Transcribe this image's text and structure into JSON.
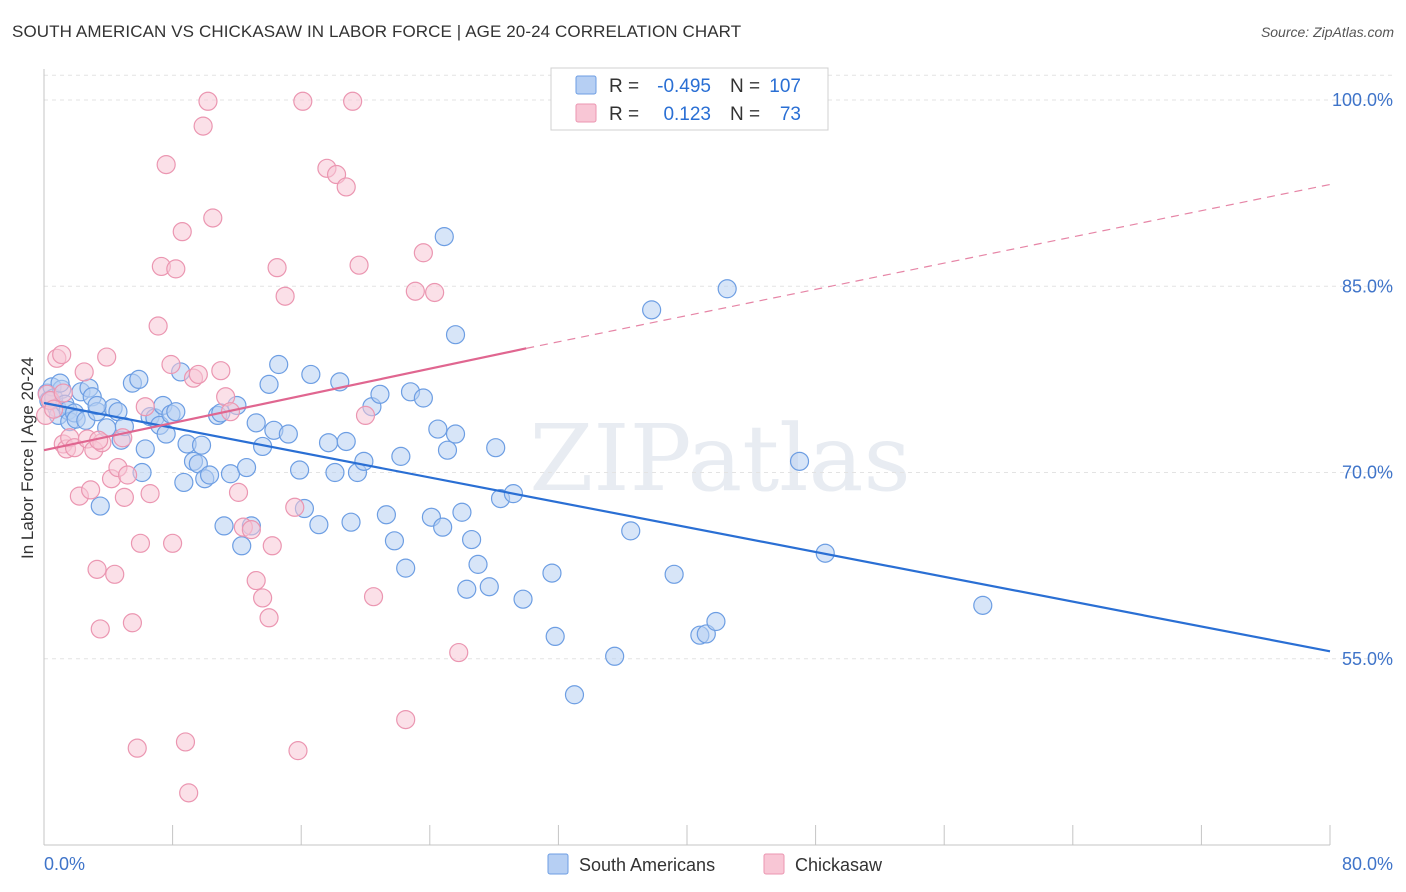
{
  "chart_data": {
    "type": "scatter",
    "title": "SOUTH AMERICAN VS CHICKASAW IN LABOR FORCE | AGE 20-24 CORRELATION CHART",
    "source": "Source: ZipAtlas.com",
    "xlabel": "",
    "ylabel": "In Labor Force | Age 20-24",
    "xlim": [
      0,
      80
    ],
    "ylim": [
      40,
      102.5
    ],
    "x_tick_labels": [
      "0.0%",
      "80.0%"
    ],
    "y_ticks": [
      55,
      70,
      85,
      100
    ],
    "y_tick_labels": [
      "55.0%",
      "70.0%",
      "85.0%",
      "100.0%"
    ],
    "watermark": "ZIPatlas",
    "legend_top": [
      {
        "r_label": "R =",
        "r_value": "-0.495",
        "n_label": "N =",
        "n_value": "107"
      },
      {
        "r_label": "R =",
        "r_value": "0.123",
        "n_label": "N =",
        "n_value": "73"
      }
    ],
    "series": [
      {
        "name": "South Americans",
        "color": "#6d9ee3",
        "fill": "#b6cff3",
        "line_color": "#2a6fd4",
        "trend": {
          "x0": 0,
          "y0": 75.6,
          "x1": 80,
          "y1": 55.6
        },
        "points": [
          [
            0.2,
            76.4
          ],
          [
            0.3,
            75.8
          ],
          [
            0.5,
            76.9
          ],
          [
            0.6,
            76.0
          ],
          [
            0.8,
            75.2
          ],
          [
            0.9,
            74.6
          ],
          [
            1.1,
            76.7
          ],
          [
            1.3,
            75.5
          ],
          [
            1.5,
            75.0
          ],
          [
            1.6,
            74.1
          ],
          [
            1.9,
            74.8
          ],
          [
            2.0,
            74.3
          ],
          [
            2.3,
            76.5
          ],
          [
            2.6,
            74.2
          ],
          [
            2.8,
            76.8
          ],
          [
            3.0,
            76.1
          ],
          [
            3.3,
            74.9
          ],
          [
            3.5,
            67.3
          ],
          [
            3.9,
            73.6
          ],
          [
            4.3,
            75.2
          ],
          [
            4.6,
            74.9
          ],
          [
            4.8,
            72.6
          ],
          [
            5.0,
            73.7
          ],
          [
            5.5,
            77.2
          ],
          [
            5.9,
            77.5
          ],
          [
            6.1,
            70.0
          ],
          [
            6.3,
            71.9
          ],
          [
            6.6,
            74.5
          ],
          [
            6.9,
            74.4
          ],
          [
            7.2,
            73.8
          ],
          [
            7.4,
            75.4
          ],
          [
            7.6,
            73.1
          ],
          [
            7.9,
            74.7
          ],
          [
            8.2,
            74.9
          ],
          [
            8.5,
            78.1
          ],
          [
            8.7,
            69.2
          ],
          [
            8.9,
            72.3
          ],
          [
            9.3,
            70.9
          ],
          [
            9.6,
            70.7
          ],
          [
            9.8,
            72.2
          ],
          [
            10.0,
            69.5
          ],
          [
            10.3,
            69.8
          ],
          [
            10.8,
            74.6
          ],
          [
            11.0,
            74.8
          ],
          [
            11.2,
            65.7
          ],
          [
            11.6,
            69.9
          ],
          [
            12.0,
            75.4
          ],
          [
            12.3,
            64.1
          ],
          [
            12.6,
            70.4
          ],
          [
            12.9,
            65.7
          ],
          [
            13.2,
            74.0
          ],
          [
            13.6,
            72.1
          ],
          [
            14.0,
            77.1
          ],
          [
            14.3,
            73.4
          ],
          [
            14.6,
            78.7
          ],
          [
            15.2,
            73.1
          ],
          [
            15.9,
            70.2
          ],
          [
            16.2,
            67.1
          ],
          [
            16.6,
            77.9
          ],
          [
            17.1,
            65.8
          ],
          [
            17.7,
            72.4
          ],
          [
            18.1,
            70.0
          ],
          [
            18.4,
            77.3
          ],
          [
            18.8,
            72.5
          ],
          [
            19.1,
            66.0
          ],
          [
            19.5,
            70.0
          ],
          [
            19.9,
            70.9
          ],
          [
            20.4,
            75.3
          ],
          [
            20.9,
            76.3
          ],
          [
            21.3,
            66.6
          ],
          [
            21.8,
            64.5
          ],
          [
            22.2,
            71.3
          ],
          [
            22.5,
            62.3
          ],
          [
            22.8,
            76.5
          ],
          [
            23.6,
            76.0
          ],
          [
            24.1,
            66.4
          ],
          [
            24.5,
            73.5
          ],
          [
            24.8,
            65.6
          ],
          [
            25.1,
            71.8
          ],
          [
            25.6,
            73.1
          ],
          [
            26.0,
            66.8
          ],
          [
            26.3,
            60.6
          ],
          [
            26.6,
            64.6
          ],
          [
            27.0,
            62.6
          ],
          [
            27.7,
            60.8
          ],
          [
            28.1,
            72.0
          ],
          [
            28.4,
            67.9
          ],
          [
            29.2,
            68.3
          ],
          [
            29.8,
            59.8
          ],
          [
            31.6,
            61.9
          ],
          [
            31.8,
            56.8
          ],
          [
            33.0,
            52.1
          ],
          [
            35.5,
            55.2
          ],
          [
            36.5,
            65.3
          ],
          [
            37.8,
            83.1
          ],
          [
            39.2,
            61.8
          ],
          [
            40.8,
            56.9
          ],
          [
            41.2,
            57.0
          ],
          [
            41.8,
            58.0
          ],
          [
            42.5,
            84.8
          ],
          [
            47.0,
            70.9
          ],
          [
            48.6,
            63.5
          ],
          [
            58.4,
            59.3
          ],
          [
            24.9,
            89.0
          ],
          [
            25.6,
            81.1
          ],
          [
            1.0,
            77.2
          ],
          [
            3.3,
            75.4
          ]
        ]
      },
      {
        "name": "Chickasaw",
        "color": "#eb96b1",
        "fill": "#f8c6d5",
        "line_color": "#e06690",
        "trend": {
          "x0": 0,
          "y0": 71.8,
          "x1": 30,
          "y1": 80.0,
          "dash_x1": 80,
          "dash_y1": 93.2
        },
        "points": [
          [
            0.1,
            74.6
          ],
          [
            0.2,
            76.3
          ],
          [
            0.4,
            75.8
          ],
          [
            0.6,
            75.1
          ],
          [
            0.8,
            79.2
          ],
          [
            1.1,
            79.5
          ],
          [
            1.2,
            72.3
          ],
          [
            1.4,
            71.9
          ],
          [
            1.6,
            72.8
          ],
          [
            1.9,
            72.0
          ],
          [
            2.2,
            68.1
          ],
          [
            2.5,
            78.1
          ],
          [
            2.7,
            72.7
          ],
          [
            2.9,
            68.6
          ],
          [
            3.1,
            71.8
          ],
          [
            3.3,
            62.2
          ],
          [
            3.5,
            57.4
          ],
          [
            3.6,
            72.4
          ],
          [
            3.9,
            79.3
          ],
          [
            4.2,
            69.5
          ],
          [
            4.4,
            61.8
          ],
          [
            4.6,
            70.4
          ],
          [
            4.9,
            72.8
          ],
          [
            5.0,
            68.0
          ],
          [
            5.2,
            69.8
          ],
          [
            5.5,
            57.9
          ],
          [
            5.8,
            47.8
          ],
          [
            6.0,
            64.3
          ],
          [
            6.3,
            75.3
          ],
          [
            6.6,
            68.3
          ],
          [
            7.1,
            81.8
          ],
          [
            7.3,
            86.6
          ],
          [
            7.6,
            94.8
          ],
          [
            7.9,
            78.7
          ],
          [
            8.0,
            64.3
          ],
          [
            8.2,
            86.4
          ],
          [
            8.6,
            89.4
          ],
          [
            8.8,
            48.3
          ],
          [
            9.0,
            44.2
          ],
          [
            9.3,
            77.6
          ],
          [
            9.6,
            77.9
          ],
          [
            9.9,
            97.9
          ],
          [
            10.2,
            99.9
          ],
          [
            10.5,
            90.5
          ],
          [
            11.0,
            78.2
          ],
          [
            11.3,
            76.1
          ],
          [
            11.6,
            74.9
          ],
          [
            12.1,
            68.4
          ],
          [
            12.4,
            65.6
          ],
          [
            12.9,
            65.4
          ],
          [
            13.2,
            61.3
          ],
          [
            13.6,
            59.9
          ],
          [
            14.0,
            58.3
          ],
          [
            14.2,
            64.1
          ],
          [
            14.5,
            86.5
          ],
          [
            15.0,
            84.2
          ],
          [
            15.6,
            67.2
          ],
          [
            15.8,
            47.6
          ],
          [
            16.1,
            99.9
          ],
          [
            17.6,
            94.5
          ],
          [
            18.2,
            94.0
          ],
          [
            18.8,
            93.0
          ],
          [
            19.2,
            99.9
          ],
          [
            19.6,
            86.7
          ],
          [
            20.0,
            74.6
          ],
          [
            20.5,
            60.0
          ],
          [
            22.5,
            50.1
          ],
          [
            23.1,
            84.6
          ],
          [
            23.6,
            87.7
          ],
          [
            24.3,
            84.5
          ],
          [
            25.8,
            55.5
          ],
          [
            3.4,
            72.6
          ],
          [
            1.2,
            76.4
          ]
        ]
      }
    ]
  }
}
